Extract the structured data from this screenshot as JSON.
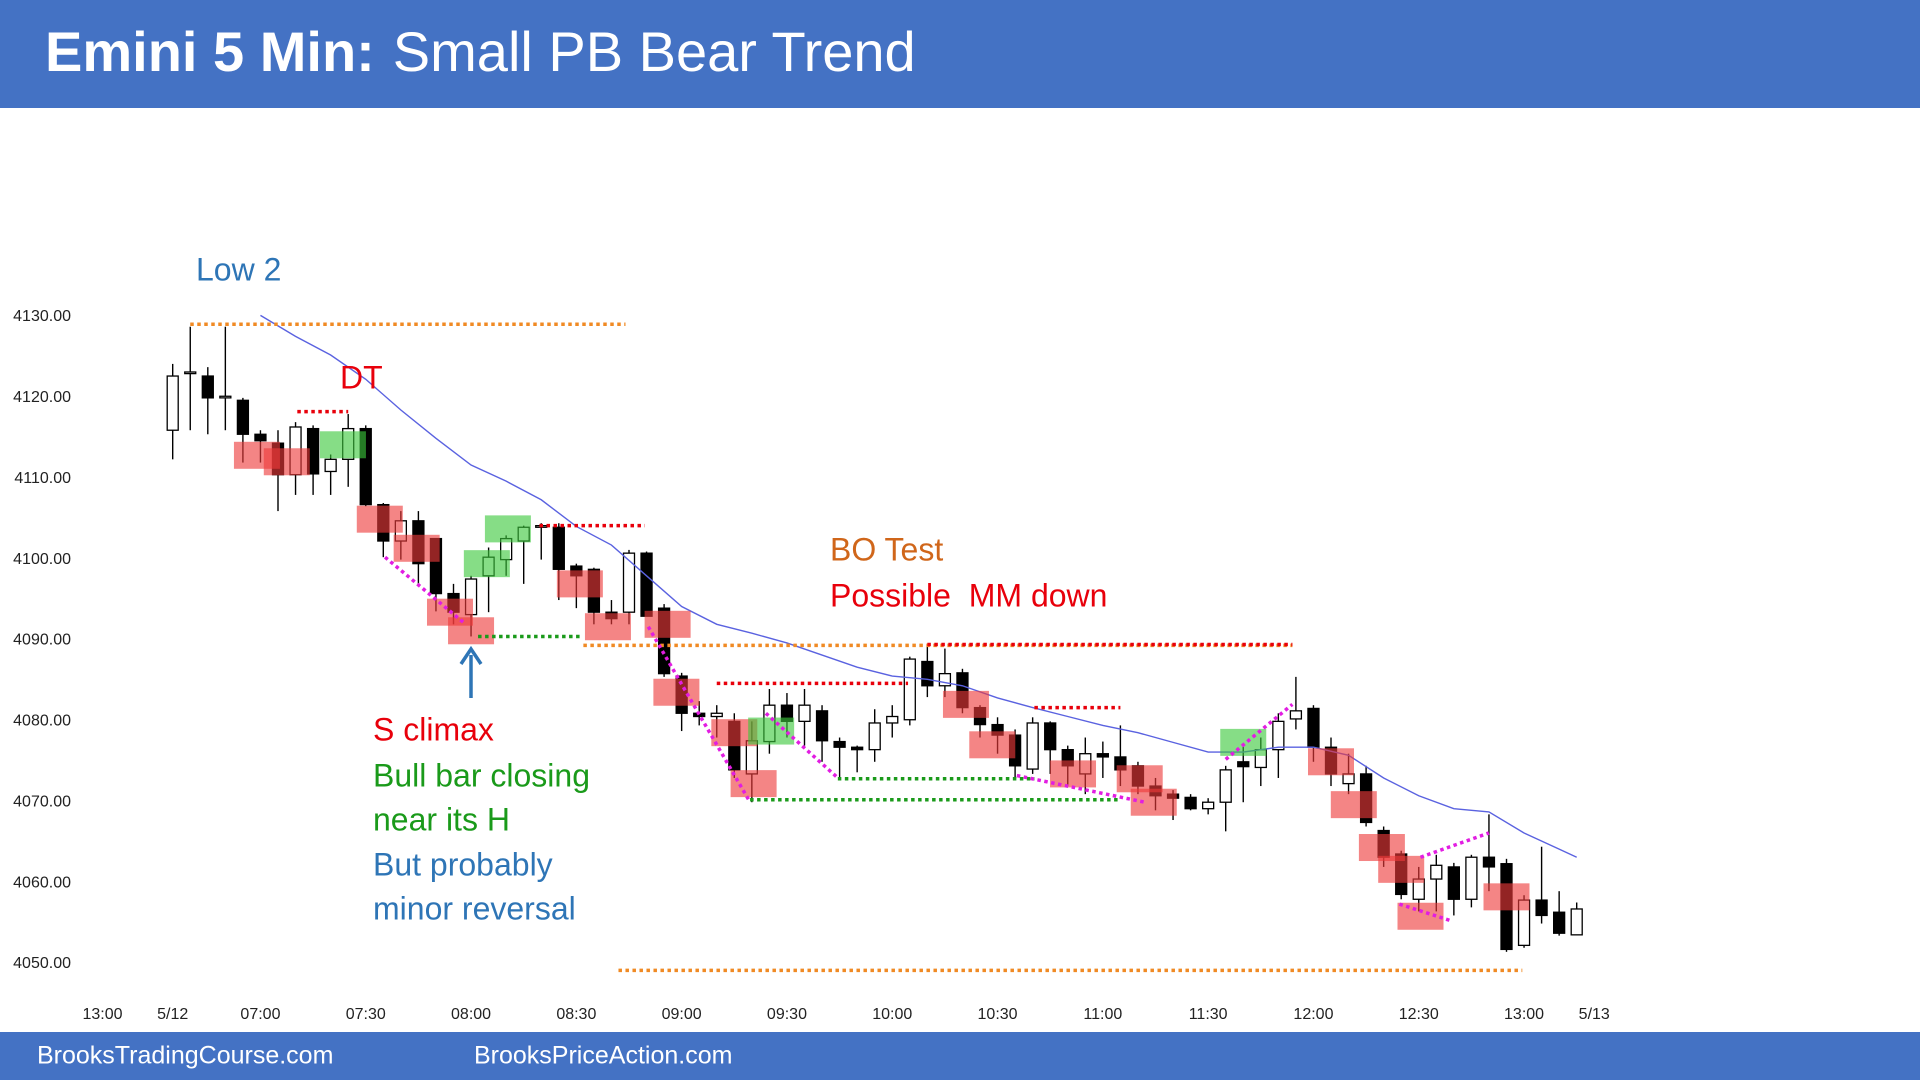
{
  "chart_data": {
    "type": "candlestick",
    "title": "Emini 5 Min:",
    "subtitle": "Small PB Bear Trend",
    "xlim": [
      -5,
      82
    ],
    "xticks": [
      {
        "value": -4,
        "label": "13:00"
      },
      {
        "value": 0,
        "label": "5/12"
      },
      {
        "value": 5,
        "label": "07:00"
      },
      {
        "value": 11,
        "label": "07:30"
      },
      {
        "value": 17,
        "label": "08:00"
      },
      {
        "value": 23,
        "label": "08:30"
      },
      {
        "value": 29,
        "label": "09:00"
      },
      {
        "value": 35,
        "label": "09:30"
      },
      {
        "value": 41,
        "label": "10:00"
      },
      {
        "value": 47,
        "label": "10:30"
      },
      {
        "value": 53,
        "label": "11:00"
      },
      {
        "value": 59,
        "label": "11:30"
      },
      {
        "value": 65,
        "label": "12:00"
      },
      {
        "value": 71,
        "label": "12:30"
      },
      {
        "value": 77,
        "label": "13:00"
      },
      {
        "value": 81,
        "label": "5/13"
      }
    ],
    "ylim": [
      4045,
      4145
    ],
    "yticks": [
      {
        "value": 4050,
        "label": "4050.00"
      },
      {
        "value": 4060,
        "label": "4060.00"
      },
      {
        "value": 4070,
        "label": "4070.00"
      },
      {
        "value": 4080,
        "label": "4080.00"
      },
      {
        "value": 4090,
        "label": "4090.00"
      },
      {
        "value": 4100,
        "label": "4100.00"
      },
      {
        "value": 4110,
        "label": "4110.00"
      },
      {
        "value": 4120,
        "label": "4120.00"
      },
      {
        "value": 4130,
        "label": "4130.00"
      }
    ],
    "grid": false,
    "up_color": "#ffffff",
    "down_color": "#000000",
    "open": [
      4116,
      4123,
      4122.7,
      4120,
      4119.7,
      4115.5,
      4114.4,
      4110.5,
      4116.2,
      4110.9,
      4112.4,
      4116.2,
      4106.8,
      4102.3,
      4104.8,
      4102.6,
      4095.8,
      4093.2,
      4098,
      4100,
      4102.3,
      4104,
      4104,
      4099.2,
      4098.8,
      4093.5,
      4093.5,
      4100.8,
      4094,
      4085.6,
      4081,
      4080.6,
      4080,
      4073.5,
      4077.5,
      4082,
      4080,
      4081.3,
      4077.5,
      4076.8,
      4076.5,
      4079.8,
      4080.2,
      4087.4,
      4084.4,
      4086,
      4081.7,
      4079.6,
      4078.3,
      4074.1,
      4079.8,
      4076.5,
      4073.5,
      4076,
      4075.6,
      4074.5,
      4072,
      4071,
      4070.6,
      4069.2,
      4070,
      4075,
      4074.3,
      4076.5,
      4080.3,
      4081.6,
      4076.8,
      4072.3,
      4073.5,
      4066.5,
      4063.6,
      4058,
      4060.5,
      4062,
      4058,
      4063.2,
      4062.4,
      4052.3,
      4057.9,
      4056.4,
      4053.6
    ],
    "high": [
      4124.2,
      4128.8,
      4123.8,
      4128.8,
      4120,
      4116,
      4116,
      4117,
      4116.6,
      4113,
      4118,
      4116.6,
      4107,
      4106,
      4106,
      4102.6,
      4097,
      4098,
      4101.5,
      4103,
      4104.2,
      4104.5,
      4104.5,
      4099.5,
      4099,
      4095,
      4101.2,
      4101,
      4094.5,
      4086,
      4082.5,
      4082,
      4081,
      4080,
      4084,
      4083.5,
      4084,
      4082,
      4078,
      4077,
      4081.5,
      4082,
      4088,
      4089.5,
      4089,
      4086.5,
      4082,
      4080.5,
      4079,
      4080.5,
      4080,
      4077,
      4078,
      4077.5,
      4079.5,
      4075,
      4073,
      4071.5,
      4071,
      4070.5,
      4074.5,
      4077,
      4078,
      4081,
      4085.5,
      4082,
      4078,
      4076,
      4074.5,
      4067,
      4064,
      4062,
      4063.5,
      4062.5,
      4063.5,
      4068.5,
      4063,
      4058.5,
      4064.5,
      4059,
      4057.6
    ],
    "low": [
      4112.4,
      4116,
      4115.5,
      4116,
      4112,
      4112,
      4106,
      4108,
      4108,
      4108,
      4109,
      4106.6,
      4100.3,
      4100,
      4097,
      4093.6,
      4092,
      4090.5,
      4093.5,
      4098,
      4097,
      4100,
      4095,
      4094,
      4092,
      4092,
      4092,
      4093,
      4085.5,
      4078.8,
      4079.5,
      4078,
      4073,
      4070,
      4076,
      4078,
      4077,
      4075,
      4073,
      4073.7,
      4075,
      4078,
      4079.5,
      4083,
      4083,
      4081,
      4078,
      4076,
      4073,
      4073.5,
      4073.5,
      4072,
      4071,
      4073,
      4072,
      4071,
      4069,
      4067.8,
      4069,
      4068.5,
      4066.4,
      4070,
      4072,
      4073,
      4079,
      4075,
      4072,
      4071,
      4067,
      4062,
      4058,
      4056.5,
      4056.5,
      4056,
      4057,
      4059,
      4051.5,
      4052,
      4055,
      4053.5,
      4053.6
    ],
    "close": [
      4122.7,
      4123.2,
      4120,
      4120.2,
      4115.5,
      4114.7,
      4110.5,
      4116.4,
      4110.6,
      4112.4,
      4116.2,
      4106.8,
      4102.3,
      4104.8,
      4099.5,
      4095.8,
      4093.5,
      4097.6,
      4100.3,
      4102.6,
      4104,
      4104.2,
      4098.8,
      4098,
      4093.5,
      4092.7,
      4100.8,
      4093,
      4085.9,
      4081,
      4080.6,
      4081,
      4074,
      4077.6,
      4082,
      4080,
      4082,
      4077.6,
      4076.8,
      4076.5,
      4079.8,
      4080.6,
      4087.7,
      4084.4,
      4085.9,
      4081.7,
      4079.6,
      4078.3,
      4074.5,
      4079.8,
      4076.5,
      4074.5,
      4076,
      4075.6,
      4074,
      4072,
      4070.8,
      4070.5,
      4069.2,
      4070,
      4074,
      4074.4,
      4076.5,
      4080,
      4081.3,
      4076.8,
      4073.5,
      4073.5,
      4067.5,
      4063.2,
      4058.6,
      4060.5,
      4062.2,
      4058,
      4063.2,
      4062,
      4051.8,
      4057.9,
      4056,
      4053.8,
      4056.8
    ],
    "moving_average": {
      "color": "#5a62e0",
      "x": [
        5,
        7,
        9,
        11,
        13,
        15,
        17,
        19,
        21,
        23,
        25,
        27,
        29,
        31,
        33,
        35,
        37,
        39,
        41,
        43,
        45,
        47,
        49,
        51,
        53,
        55,
        57,
        59,
        61,
        63,
        65,
        67,
        69,
        71,
        73,
        75,
        77,
        79,
        80
      ],
      "values": [
        4130.2,
        4127.6,
        4125.3,
        4122.3,
        4118.5,
        4115,
        4111.7,
        4109.7,
        4107.4,
        4104.1,
        4101.8,
        4098,
        4094.2,
        4092,
        4090.9,
        4089.7,
        4088.2,
        4086.7,
        4085.6,
        4085.2,
        4084.4,
        4082.9,
        4081.7,
        4080.6,
        4079.5,
        4078.6,
        4077.4,
        4076.2,
        4076.2,
        4076.8,
        4076.8,
        4075.8,
        4073,
        4070.8,
        4069.2,
        4068.8,
        4066.2,
        4064.2,
        4063.2
      ]
    },
    "highlights": [
      {
        "x": 4.8,
        "y": 4112.9,
        "color": "#ee3a3a"
      },
      {
        "x": 6.5,
        "y": 4112.1,
        "color": "#ee3a3a"
      },
      {
        "x": 11.8,
        "y": 4105,
        "color": "#ee3a3a"
      },
      {
        "x": 13.9,
        "y": 4101.4,
        "color": "#ee3a3a"
      },
      {
        "x": 15.8,
        "y": 4093.5,
        "color": "#ee3a3a"
      },
      {
        "x": 17,
        "y": 4091.2,
        "color": "#ee3a3a"
      },
      {
        "x": 23.2,
        "y": 4097,
        "color": "#ee3a3a"
      },
      {
        "x": 24.8,
        "y": 4091.7,
        "color": "#ee3a3a"
      },
      {
        "x": 28.2,
        "y": 4092,
        "color": "#ee3a3a"
      },
      {
        "x": 28.7,
        "y": 4083.6,
        "color": "#ee3a3a"
      },
      {
        "x": 32,
        "y": 4078.6,
        "color": "#ee3a3a"
      },
      {
        "x": 33.1,
        "y": 4072.3,
        "color": "#ee3a3a"
      },
      {
        "x": 45.2,
        "y": 4082.1,
        "color": "#ee3a3a"
      },
      {
        "x": 46.7,
        "y": 4077.1,
        "color": "#ee3a3a"
      },
      {
        "x": 51.3,
        "y": 4073.5,
        "color": "#ee3a3a"
      },
      {
        "x": 55.1,
        "y": 4072.9,
        "color": "#ee3a3a"
      },
      {
        "x": 55.9,
        "y": 4070,
        "color": "#ee3a3a"
      },
      {
        "x": 66,
        "y": 4075,
        "color": "#ee3a3a"
      },
      {
        "x": 67.3,
        "y": 4069.7,
        "color": "#ee3a3a"
      },
      {
        "x": 68.9,
        "y": 4064.4,
        "color": "#ee3a3a"
      },
      {
        "x": 70,
        "y": 4061.7,
        "color": "#ee3a3a"
      },
      {
        "x": 71.1,
        "y": 4055.9,
        "color": "#ee3a3a"
      },
      {
        "x": 76,
        "y": 4058.3,
        "color": "#ee3a3a"
      },
      {
        "x": 9.7,
        "y": 4114.2,
        "color": "#3cc83c"
      },
      {
        "x": 19.1,
        "y": 4103.8,
        "color": "#3cc83c"
      },
      {
        "x": 17.9,
        "y": 4099.5,
        "color": "#3cc83c"
      },
      {
        "x": 34.1,
        "y": 4078.8,
        "color": "#3cc83c"
      },
      {
        "x": 61,
        "y": 4077.4,
        "color": "#3cc83c"
      }
    ],
    "levels": [
      {
        "from": 1,
        "to": 25.8,
        "price": 4129.1,
        "color": "#f08a24"
      },
      {
        "from": 23.4,
        "to": 63.8,
        "price": 4089.4,
        "color": "#f08a24"
      },
      {
        "from": 25.4,
        "to": 76.9,
        "price": 4049.2,
        "color": "#f08a24"
      },
      {
        "from": 7.1,
        "to": 10,
        "price": 4118.3,
        "color": "#e8000b"
      },
      {
        "from": 20.9,
        "to": 26.9,
        "price": 4104.2,
        "color": "#e8000b"
      },
      {
        "from": 43,
        "to": 63.8,
        "price": 4089.5,
        "color": "#e8000b"
      },
      {
        "from": 31,
        "to": 41.9,
        "price": 4084.7,
        "color": "#e8000b"
      },
      {
        "from": 49.1,
        "to": 54,
        "price": 4081.7,
        "color": "#e8000b"
      },
      {
        "from": 17.4,
        "to": 23.3,
        "price": 4090.5,
        "color": "#1a9a1a"
      },
      {
        "from": 37.9,
        "to": 49.1,
        "price": 4072.9,
        "color": "#1a9a1a"
      },
      {
        "from": 32.9,
        "to": 54,
        "price": 4070.3,
        "color": "#1a9a1a"
      }
    ],
    "trendlines": [
      {
        "x": [
          12.1,
          16.7
        ],
        "y": [
          4100.3,
          4092
        ],
        "color": "#e21de2"
      },
      {
        "x": [
          27.1,
          32.9
        ],
        "y": [
          4091.7,
          4070
        ],
        "color": "#e21de2"
      },
      {
        "x": [
          33.8,
          37.9
        ],
        "y": [
          4081,
          4073
        ],
        "color": "#e21de2"
      },
      {
        "x": [
          48.1,
          55.4
        ],
        "y": [
          4073.3,
          4070
        ],
        "color": "#e21de2"
      },
      {
        "x": [
          60,
          63.8
        ],
        "y": [
          4075.3,
          4082.1
        ],
        "color": "#e21de2"
      },
      {
        "x": [
          69.9,
          72.9
        ],
        "y": [
          4057.4,
          4055.3
        ],
        "color": "#e21de2"
      },
      {
        "x": [
          71.1,
          75
        ],
        "y": [
          4063.2,
          4066.2
        ],
        "color": "#e21de2"
      }
    ],
    "annotations": [
      {
        "text": "Low 2",
        "color": "#2e75b6"
      },
      {
        "text": "DT",
        "color": "#e8000b"
      },
      {
        "text": "BO Test",
        "color": "#d0661a"
      },
      {
        "text": "Possible  MM down",
        "color": "#e8000b"
      },
      {
        "text": "S climax",
        "color": "#e8000b"
      },
      {
        "text": "Bull bar closing",
        "color": "#1a9a1a"
      },
      {
        "text": "near its H",
        "color": "#1a9a1a"
      },
      {
        "text": "But probably",
        "color": "#2e75b6"
      },
      {
        "text": "minor reversal",
        "color": "#2e75b6"
      }
    ]
  },
  "footer": {
    "links": [
      "BrooksTradingCourse.com",
      "BrooksPriceAction.com"
    ]
  }
}
